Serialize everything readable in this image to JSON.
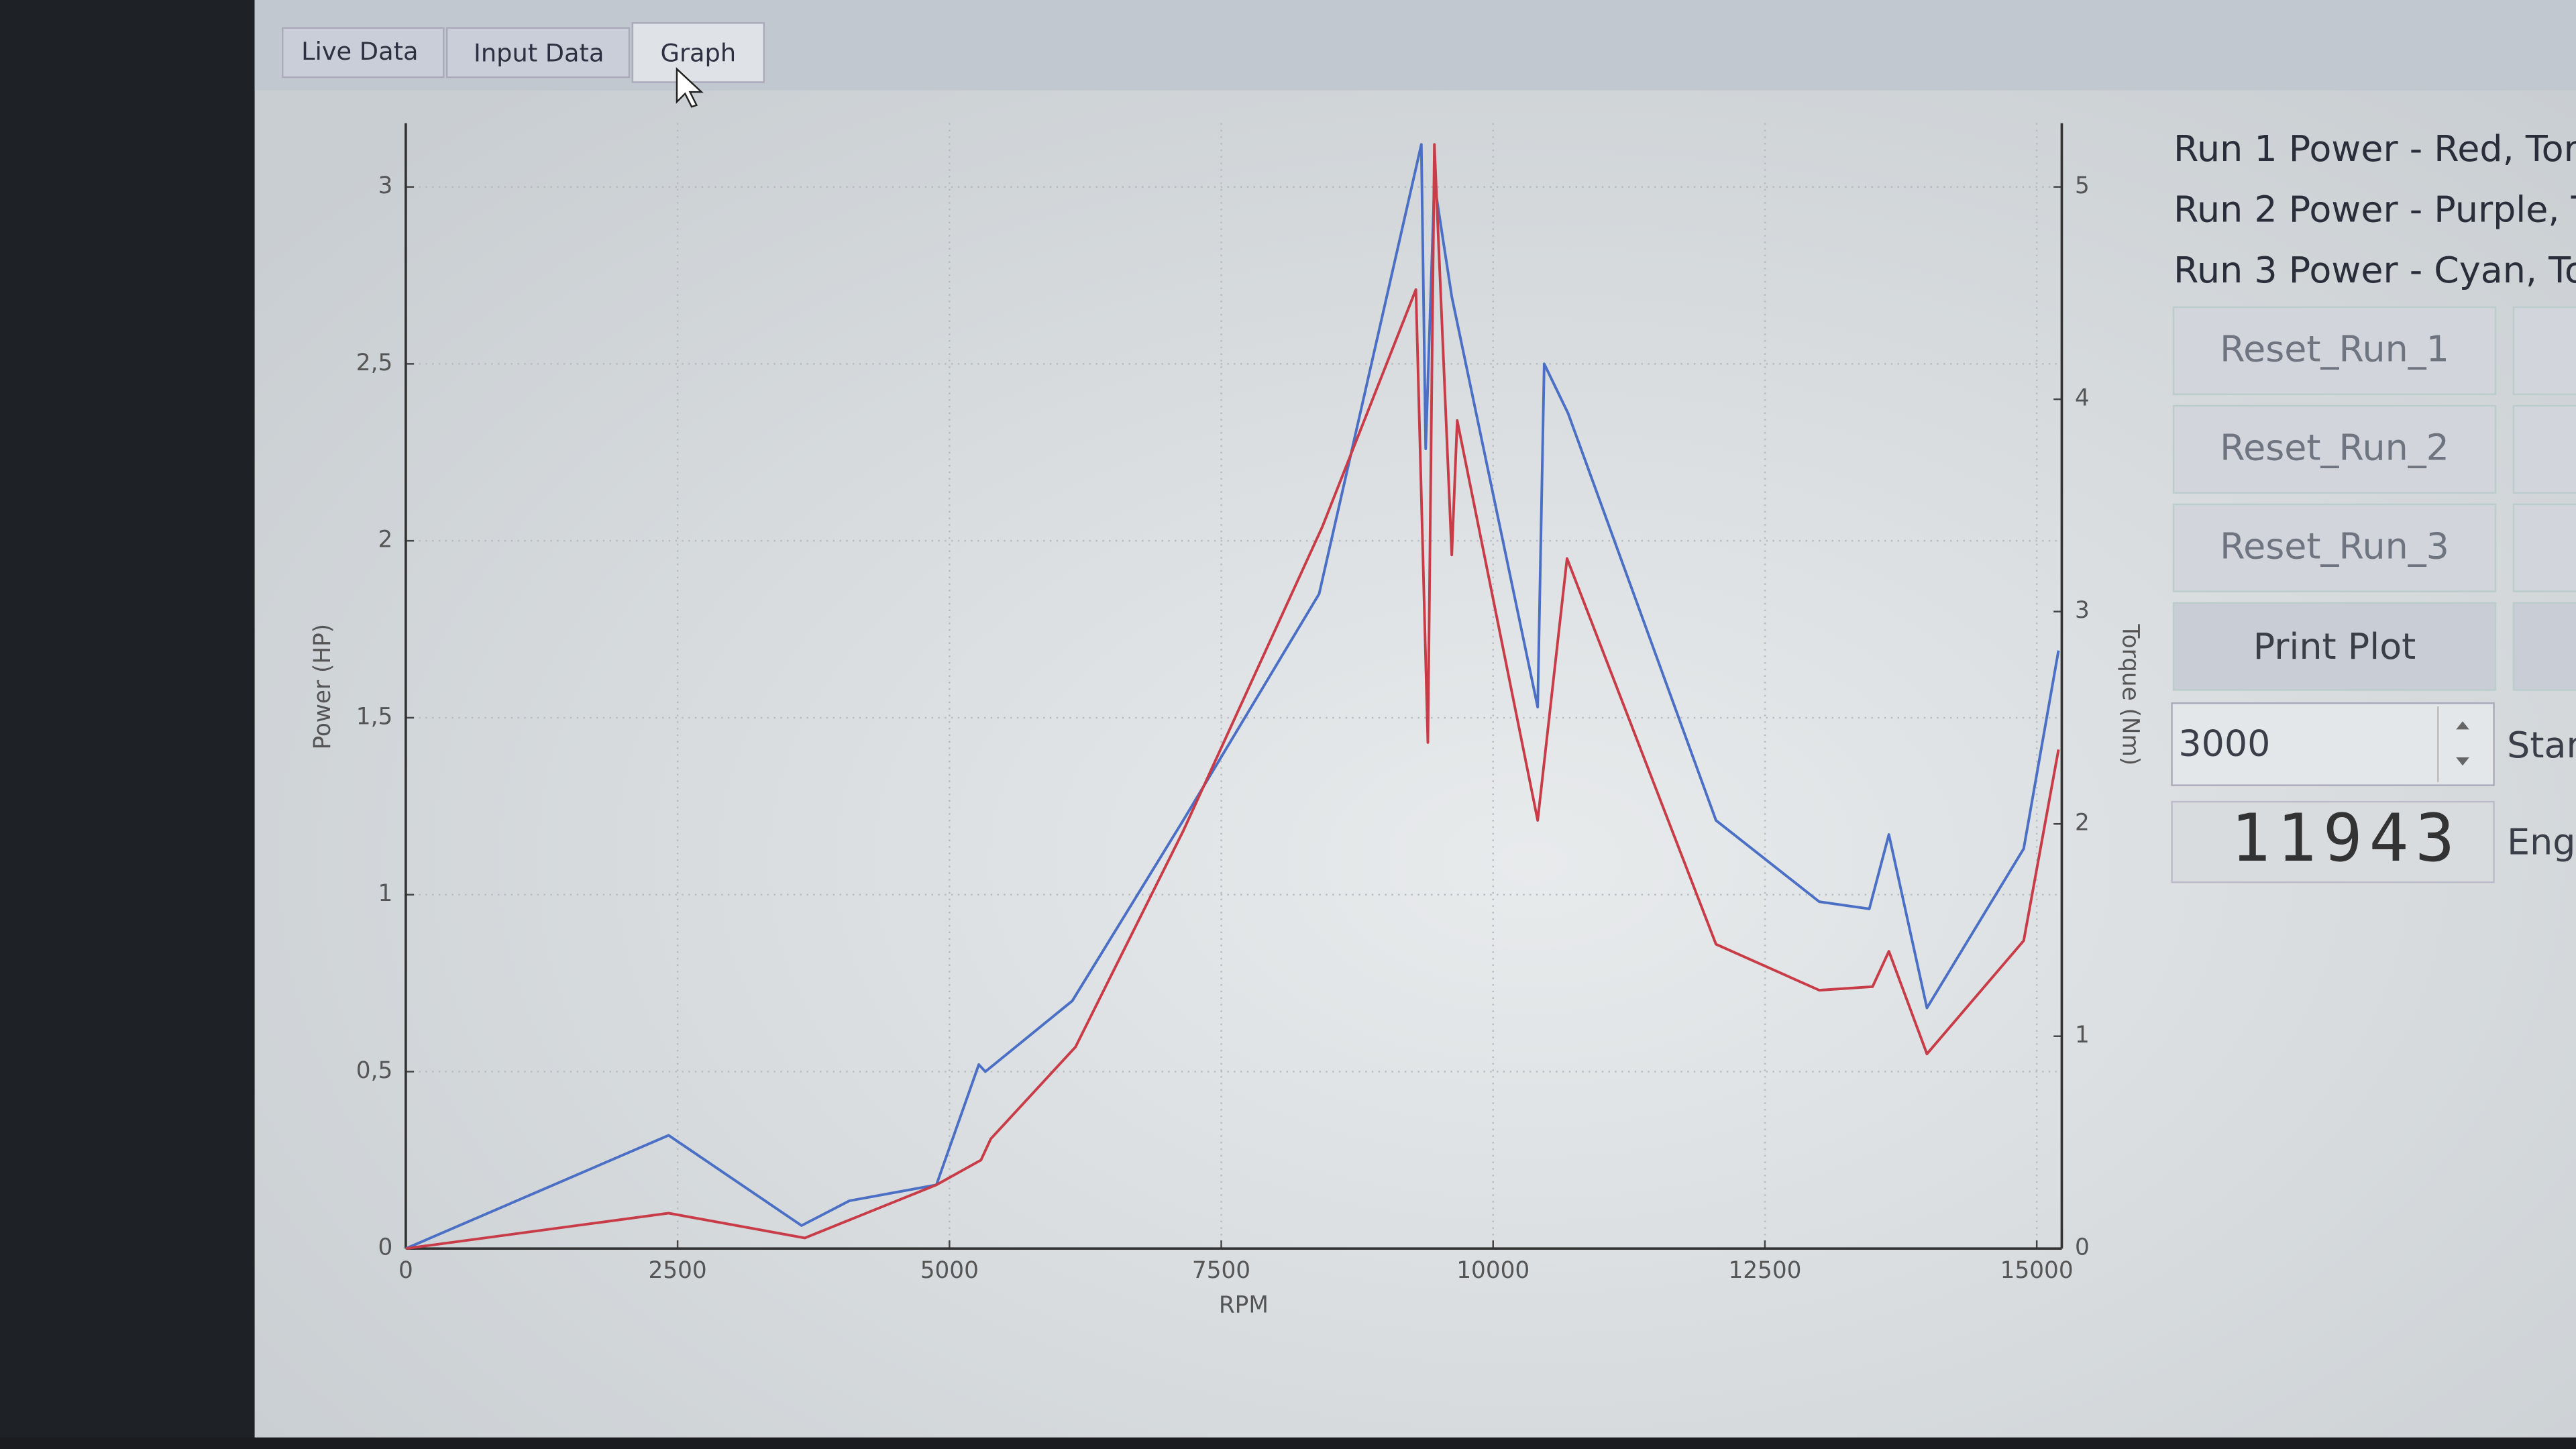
{
  "tabs": [
    "Live Data",
    "Input Data",
    "Graph"
  ],
  "chart_data": {
    "type": "line",
    "x_label": "RPM",
    "y_label": "Power (HP)",
    "y2_label": "Torque (Nm)",
    "xlim": [
      0,
      15200
    ],
    "xticks": [
      0,
      2500,
      5000,
      7500,
      10000,
      12500,
      15000
    ],
    "ylim": [
      0,
      3.18
    ],
    "yticks": [
      0,
      {
        "value": 0.5,
        "label": "0,5"
      },
      1,
      {
        "value": 1.5,
        "label": "1,5"
      },
      2,
      {
        "value": 2.5,
        "label": "2,5"
      },
      3
    ],
    "y2lim": [
      0,
      5.3
    ],
    "y2ticks": [
      0,
      1,
      2,
      3,
      4,
      5
    ],
    "grid": true,
    "series": [
      {
        "color": "#4a6fc4",
        "x": [
          0,
          2417,
          3640,
          4080,
          4880,
          5270,
          5330,
          6130,
          7150,
          8400,
          9340,
          9380,
          9460,
          9620,
          10410,
          10470,
          10690,
          12050,
          13000,
          13460,
          13640,
          13990,
          14880,
          15200
        ],
        "values": [
          0,
          0.32,
          0.065,
          0.135,
          0.18,
          0.52,
          0.5,
          0.7,
          1.21,
          1.85,
          3.12,
          2.26,
          3.01,
          2.69,
          1.53,
          2.5,
          2.36,
          1.21,
          0.98,
          0.96,
          1.17,
          0.68,
          1.13,
          1.69
        ]
      },
      {
        "color": "#c83c48",
        "x": [
          0,
          2417,
          3670,
          4880,
          5290,
          5380,
          6160,
          7150,
          8430,
          9290,
          9400,
          9460,
          9620,
          9670,
          10410,
          10680,
          12050,
          13000,
          13490,
          13640,
          13990,
          14880,
          15200
        ],
        "values": [
          0,
          0.1,
          0.03,
          0.18,
          0.25,
          0.31,
          0.57,
          1.18,
          2.04,
          2.71,
          1.43,
          3.12,
          1.96,
          2.34,
          1.21,
          1.95,
          0.86,
          0.73,
          0.74,
          0.84,
          0.55,
          0.87,
          1.41
        ]
      }
    ]
  },
  "side_panel": {
    "run_labels": [
      "Run 1 Power - Red, Tor",
      "Run 2 Power - Purple, T",
      "Run 3 Power - Cyan, To"
    ],
    "buttons": [
      "Reset_Run_1",
      "Reset_Run_2",
      "Reset_Run_3",
      "Print Plot"
    ],
    "spinbox_value": "3000",
    "spinbox_label": "Star",
    "lcd_value": "11943",
    "lcd_label": "Eng"
  }
}
